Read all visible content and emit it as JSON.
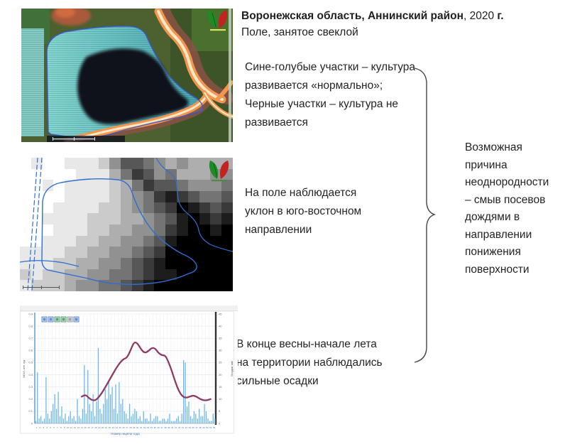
{
  "header": {
    "title_parts": {
      "bold1": "Воронежская область, Аннинский район",
      "normal": ", 2020 ",
      "bold2": "г."
    },
    "subtitle": "Поле, занятое свеклой"
  },
  "notes": {
    "ndvi_note": "Сине-голубые участки – культура\nразвивается «нормально»;\nЧерные участки – культура не\nразвивается",
    "slope_note": "На поле наблюдается\nуклон в юго-восточном\nнаправлении",
    "rain_note": "В конце весны-начале лета\nна территории наблюдались\nсильные осадки",
    "conclusion": "Возможная\nпричина\nнеоднородности\n– смыв посевов\nдождями в\nнаправлении\nпонижения\nповерхности"
  },
  "logo": {
    "leaf_left_color": "#1e8b24",
    "leaf_right_color": "#c32222"
  },
  "satellite": {
    "field_outline_color": "#3a55c8"
  },
  "dem": {
    "line_color": "#2f6fd0",
    "rows": [
      "9899888753345656666",
      "9999988864235466655",
      "9989888876423345554",
      "9999888876542123443",
      "9998888776543201232",
      "9988887776654310121",
      "9998887766554210010",
      "9988877665543100000",
      "8888776655432000000",
      "8887766554321000000",
      "7877665544321100000",
      "8777655443210000000"
    ]
  },
  "chart_data": {
    "type": "line+bar",
    "title": "",
    "x_label": "Номер недели года",
    "grid": true,
    "legend": "none",
    "left_axis": {
      "label": "NDVI, отн. ед.",
      "min": 0,
      "max": 0.9,
      "ticks": [
        0,
        0.1,
        0.2,
        0.3,
        0.4,
        0.5,
        0.6,
        0.7,
        0.8,
        0.9
      ]
    },
    "right_axis": {
      "label": "Осадки, мм",
      "min": 0,
      "max": 45,
      "ticks": [
        0,
        5,
        10,
        15,
        20,
        25,
        30,
        35,
        40,
        45
      ]
    },
    "x_ticks": [
      1,
      2,
      3,
      4,
      5,
      6,
      7,
      8,
      9,
      10,
      11,
      12,
      13,
      14,
      15,
      16,
      17,
      18,
      19,
      20,
      21,
      22,
      23,
      24,
      25,
      26,
      27,
      28,
      29,
      30,
      31,
      32,
      33,
      34,
      35,
      36,
      37,
      38,
      39,
      40,
      41,
      42,
      43,
      44,
      45,
      46,
      47,
      48,
      49,
      50,
      51,
      52
    ],
    "series": [
      {
        "name": "Осадки",
        "type": "bar",
        "axis": "right",
        "color": "#6fb9e9",
        "values": [
          1,
          21,
          2,
          3,
          1,
          2,
          19,
          4,
          2,
          5,
          8,
          12,
          6,
          13,
          3,
          7,
          2,
          4,
          1,
          3,
          5,
          2,
          3,
          1,
          10,
          3,
          2,
          6,
          24,
          4,
          22,
          8,
          5,
          12,
          3,
          9,
          31,
          6,
          4,
          8,
          14,
          10,
          17,
          12,
          15,
          6,
          16,
          4,
          17,
          8,
          10,
          5,
          4,
          2,
          8,
          3,
          4,
          6,
          5,
          2,
          3,
          1,
          5,
          2,
          2,
          1,
          4,
          1,
          2,
          3,
          3,
          1,
          1,
          2,
          2,
          1,
          2,
          4,
          1,
          1,
          1,
          2,
          3,
          1,
          4,
          26,
          25,
          7,
          9,
          3,
          2,
          5,
          4,
          2,
          6,
          3,
          3,
          8,
          5,
          2,
          1,
          1,
          4,
          2
        ]
      },
      {
        "name": "NDVI",
        "type": "line",
        "axis": "left",
        "color": "#8e3a66",
        "points": [
          [
            14,
            0.22
          ],
          [
            15,
            0.24
          ],
          [
            16,
            0.21
          ],
          [
            17,
            0.19
          ],
          [
            18,
            0.19
          ],
          [
            19,
            0.22
          ],
          [
            20,
            0.26
          ],
          [
            21,
            0.31
          ],
          [
            22,
            0.36
          ],
          [
            23,
            0.41
          ],
          [
            24,
            0.46
          ],
          [
            25,
            0.5
          ],
          [
            26,
            0.53
          ],
          [
            27,
            0.54
          ],
          [
            28,
            0.6
          ],
          [
            29,
            0.67
          ],
          [
            30,
            0.66
          ],
          [
            31,
            0.61
          ],
          [
            32,
            0.58
          ],
          [
            33,
            0.59
          ],
          [
            34,
            0.62
          ],
          [
            35,
            0.62
          ],
          [
            36,
            0.58
          ],
          [
            37,
            0.56
          ],
          [
            38,
            0.56
          ],
          [
            39,
            0.5
          ],
          [
            40,
            0.42
          ],
          [
            41,
            0.33
          ],
          [
            42,
            0.26
          ],
          [
            43,
            0.22
          ],
          [
            44,
            0.21
          ],
          [
            45,
            0.22
          ],
          [
            46,
            0.23
          ],
          [
            47,
            0.22
          ],
          [
            48,
            0.2
          ],
          [
            49,
            0.19
          ],
          [
            50,
            0.19
          ],
          [
            51,
            0.2
          ]
        ]
      }
    ],
    "toolbar": {
      "button_colors": [
        "#3f6fbf",
        "#3f6fbf",
        "#2e8b3e",
        "#2e8b3e",
        "#8a8a8a",
        "#3f6fbf"
      ]
    }
  }
}
